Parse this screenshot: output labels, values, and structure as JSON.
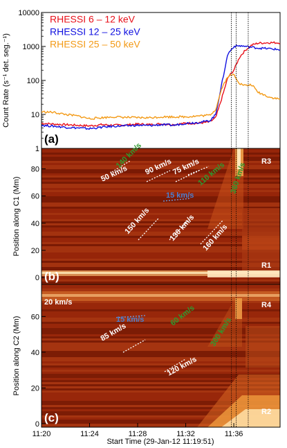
{
  "chart_data": [
    {
      "type": "line",
      "panel_label": "(a)",
      "ylabel": "Count Rate (s⁻¹ det. seg.⁻¹)",
      "yscale": "log",
      "ylim": [
        1,
        10000
      ],
      "xlim_minutes": [
        "11:20",
        "11:39:51"
      ],
      "ytick_labels": [
        "1",
        "10",
        "100",
        "1000",
        "10000"
      ],
      "colors": {
        "s1": "#e8101a",
        "s2": "#1010e0",
        "s3": "#f39a16"
      },
      "series": [
        {
          "name": "RHESSI 6 – 12 keV",
          "x": [
            "11:20",
            "11:21",
            "11:22",
            "11:23",
            "11:24",
            "11:25",
            "11:26",
            "11:27",
            "11:28",
            "11:29",
            "11:30",
            "11:31",
            "11:32",
            "11:33",
            "11:34",
            "11:34:30",
            "11:35",
            "11:35:30",
            "11:36",
            "11:36:30",
            "11:37",
            "11:37:30",
            "11:38",
            "11:39",
            "11:39:51"
          ],
          "values": [
            5.5,
            5.2,
            5,
            4.8,
            4.6,
            5,
            4.8,
            4.9,
            5.2,
            5,
            5.3,
            5,
            5.5,
            5.5,
            6,
            8,
            30,
            120,
            200,
            500,
            800,
            1100,
            1250,
            1300,
            1280
          ]
        },
        {
          "name": "RHESSI 12 – 25 keV",
          "x": [
            "11:20",
            "11:21",
            "11:22",
            "11:23",
            "11:24",
            "11:25",
            "11:26",
            "11:27",
            "11:28",
            "11:29",
            "11:30",
            "11:31",
            "11:32",
            "11:33",
            "11:34",
            "11:34:30",
            "11:35",
            "11:35:30",
            "11:36",
            "11:36:30",
            "11:37",
            "11:37:30",
            "11:38",
            "11:39",
            "11:39:51"
          ],
          "values": [
            4.8,
            4.5,
            4.2,
            4,
            3.8,
            4.2,
            4.5,
            4.6,
            4.8,
            4.7,
            5,
            4.8,
            5.5,
            5.8,
            6.5,
            10,
            80,
            600,
            1000,
            1050,
            1000,
            950,
            900,
            860,
            800
          ]
        },
        {
          "name": "RHESSI 25 – 50 keV",
          "x": [
            "11:20",
            "11:21",
            "11:22",
            "11:23",
            "11:24",
            "11:25",
            "11:26",
            "11:27",
            "11:28",
            "11:29",
            "11:30",
            "11:31",
            "11:32",
            "11:33",
            "11:34",
            "11:34:30",
            "11:35",
            "11:35:30",
            "11:36",
            "11:36:30",
            "11:37",
            "11:37:30",
            "11:38",
            "11:39",
            "11:39:51"
          ],
          "values": [
            12,
            11.5,
            10,
            9,
            7.5,
            8,
            8.5,
            8.2,
            8,
            8,
            8.5,
            8.5,
            8.5,
            9,
            9.5,
            14,
            60,
            130,
            150,
            80,
            70,
            75,
            45,
            32,
            28
          ]
        }
      ],
      "vlines": [
        "11:35:48",
        "11:36:12",
        "11:37:12"
      ]
    },
    {
      "type": "heatmap",
      "panel_label": "(b)",
      "ylabel": "Position along C1 (Mm)",
      "ytick_labels": [
        "0",
        "20",
        "40",
        "60",
        "80"
      ],
      "ylim": [
        -5,
        95
      ],
      "region_labels": [
        "R3",
        "R1"
      ],
      "speed_labels": [
        {
          "text": "140 km/s",
          "color": "#2f9a2f"
        },
        {
          "text": "50 km/s",
          "color": "#ffffff"
        },
        {
          "text": "90 km/s",
          "color": "#ffffff"
        },
        {
          "text": "75 km/s",
          "color": "#ffffff"
        },
        {
          "text": "110 km/s",
          "color": "#2f9a2f"
        },
        {
          "text": "360 km/s",
          "color": "#2f9a2f"
        },
        {
          "text": "15 km/s",
          "color": "#4a7fd0"
        },
        {
          "text": "150 km/s",
          "color": "#ffffff"
        },
        {
          "text": "130 km/s",
          "color": "#ffffff"
        },
        {
          "text": "160 km/s",
          "color": "#ffffff"
        }
      ]
    },
    {
      "type": "heatmap",
      "panel_label": "(c)",
      "ylabel": "Position along C2 (Mm)",
      "ytick_labels": [
        "0",
        "20",
        "40",
        "60"
      ],
      "ylim": [
        -2,
        78
      ],
      "region_labels": [
        "R4",
        "R2"
      ],
      "speed_labels": [
        {
          "text": "20 km/s",
          "color": "#ffffff"
        },
        {
          "text": "15 km/s",
          "color": "#4a7fd0"
        },
        {
          "text": "85 km/s",
          "color": "#ffffff"
        },
        {
          "text": "60 km/s",
          "color": "#2f9a2f"
        },
        {
          "text": "300 km/s",
          "color": "#2f9a2f"
        },
        {
          "text": "120 km/s",
          "color": "#ffffff"
        }
      ],
      "xtick_labels": [
        "11:20",
        "11:24",
        "11:28",
        "11:32",
        "11:36"
      ],
      "xlabel": "Start Time (29-Jan-12 11:19:51)"
    }
  ]
}
